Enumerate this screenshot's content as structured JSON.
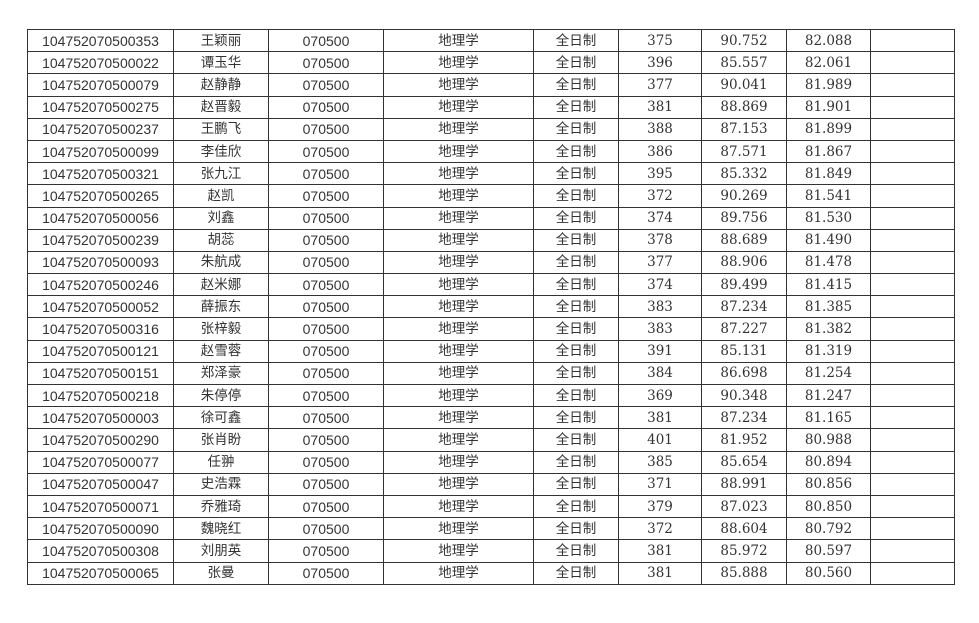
{
  "table": {
    "rows": [
      [
        "104752070500353",
        "王颖丽",
        "070500",
        "地理学",
        "全日制",
        "375",
        "90.752",
        "82.088",
        ""
      ],
      [
        "104752070500022",
        "谭玉华",
        "070500",
        "地理学",
        "全日制",
        "396",
        "85.557",
        "82.061",
        ""
      ],
      [
        "104752070500079",
        "赵静静",
        "070500",
        "地理学",
        "全日制",
        "377",
        "90.041",
        "81.989",
        ""
      ],
      [
        "104752070500275",
        "赵晋毅",
        "070500",
        "地理学",
        "全日制",
        "381",
        "88.869",
        "81.901",
        ""
      ],
      [
        "104752070500237",
        "王鹏飞",
        "070500",
        "地理学",
        "全日制",
        "388",
        "87.153",
        "81.899",
        ""
      ],
      [
        "104752070500099",
        "李佳欣",
        "070500",
        "地理学",
        "全日制",
        "386",
        "87.571",
        "81.867",
        ""
      ],
      [
        "104752070500321",
        "张九江",
        "070500",
        "地理学",
        "全日制",
        "395",
        "85.332",
        "81.849",
        ""
      ],
      [
        "104752070500265",
        "赵凯",
        "070500",
        "地理学",
        "全日制",
        "372",
        "90.269",
        "81.541",
        ""
      ],
      [
        "104752070500056",
        "刘鑫",
        "070500",
        "地理学",
        "全日制",
        "374",
        "89.756",
        "81.530",
        ""
      ],
      [
        "104752070500239",
        "胡蕊",
        "070500",
        "地理学",
        "全日制",
        "378",
        "88.689",
        "81.490",
        ""
      ],
      [
        "104752070500093",
        "朱航成",
        "070500",
        "地理学",
        "全日制",
        "377",
        "88.906",
        "81.478",
        ""
      ],
      [
        "104752070500246",
        "赵米娜",
        "070500",
        "地理学",
        "全日制",
        "374",
        "89.499",
        "81.415",
        ""
      ],
      [
        "104752070500052",
        "薛振东",
        "070500",
        "地理学",
        "全日制",
        "383",
        "87.234",
        "81.385",
        ""
      ],
      [
        "104752070500316",
        "张梓毅",
        "070500",
        "地理学",
        "全日制",
        "383",
        "87.227",
        "81.382",
        ""
      ],
      [
        "104752070500121",
        "赵雪蓉",
        "070500",
        "地理学",
        "全日制",
        "391",
        "85.131",
        "81.319",
        ""
      ],
      [
        "104752070500151",
        "郑泽豪",
        "070500",
        "地理学",
        "全日制",
        "384",
        "86.698",
        "81.254",
        ""
      ],
      [
        "104752070500218",
        "朱停停",
        "070500",
        "地理学",
        "全日制",
        "369",
        "90.348",
        "81.247",
        ""
      ],
      [
        "104752070500003",
        "徐可鑫",
        "070500",
        "地理学",
        "全日制",
        "381",
        "87.234",
        "81.165",
        ""
      ],
      [
        "104752070500290",
        "张肖盼",
        "070500",
        "地理学",
        "全日制",
        "401",
        "81.952",
        "80.988",
        ""
      ],
      [
        "104752070500077",
        "任翀",
        "070500",
        "地理学",
        "全日制",
        "385",
        "85.654",
        "80.894",
        ""
      ],
      [
        "104752070500047",
        "史浩霖",
        "070500",
        "地理学",
        "全日制",
        "371",
        "88.991",
        "80.856",
        ""
      ],
      [
        "104752070500071",
        "乔雅琦",
        "070500",
        "地理学",
        "全日制",
        "379",
        "87.023",
        "80.850",
        ""
      ],
      [
        "104752070500090",
        "魏晓红",
        "070500",
        "地理学",
        "全日制",
        "372",
        "88.604",
        "80.792",
        ""
      ],
      [
        "104752070500308",
        "刘朋英",
        "070500",
        "地理学",
        "全日制",
        "381",
        "85.972",
        "80.597",
        ""
      ],
      [
        "104752070500065",
        "张曼",
        "070500",
        "地理学",
        "全日制",
        "381",
        "85.888",
        "80.560",
        ""
      ]
    ]
  }
}
